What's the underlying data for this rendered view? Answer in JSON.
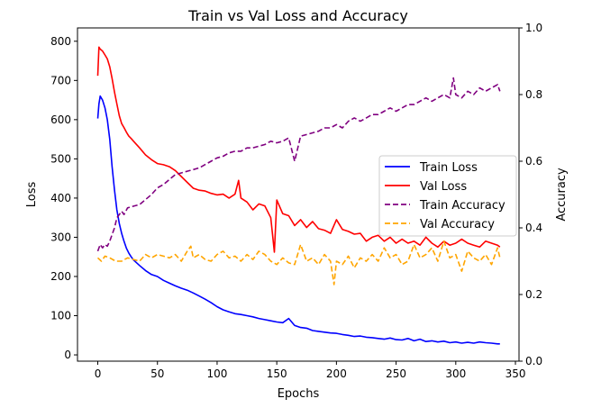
{
  "chart_data": {
    "type": "line",
    "title": "Train vs Val Loss and Accuracy",
    "xlabel": "Epochs",
    "ylabel": "Loss",
    "y2label": "Accuracy",
    "xlim": [
      -17,
      353
    ],
    "ylim": [
      -16,
      834
    ],
    "y2lim": [
      0.0,
      1.0
    ],
    "xticks": [
      0,
      50,
      100,
      150,
      200,
      250,
      300,
      350
    ],
    "yticks": [
      0,
      100,
      200,
      300,
      400,
      500,
      600,
      700,
      800
    ],
    "y2ticks": [
      0.0,
      0.2,
      0.4,
      0.6,
      0.8,
      1.0
    ],
    "grid": false,
    "legend_position": "center-right",
    "series": [
      {
        "name": "Train Loss",
        "axis": "left",
        "color": "#0000ff",
        "style": "solid",
        "x": [
          0,
          1,
          2,
          4,
          6,
          8,
          10,
          12,
          14,
          16,
          18,
          20,
          22,
          24,
          26,
          28,
          30,
          35,
          40,
          45,
          50,
          55,
          60,
          65,
          70,
          75,
          80,
          85,
          90,
          95,
          100,
          105,
          110,
          115,
          120,
          125,
          130,
          135,
          140,
          145,
          150,
          155,
          160,
          165,
          170,
          175,
          180,
          185,
          190,
          195,
          200,
          205,
          210,
          215,
          220,
          225,
          230,
          235,
          240,
          245,
          250,
          255,
          260,
          265,
          270,
          275,
          280,
          285,
          290,
          295,
          300,
          305,
          310,
          315,
          320,
          325,
          330,
          335,
          337
        ],
        "values": [
          603,
          640,
          660,
          650,
          630,
          600,
          550,
          480,
          420,
          370,
          335,
          310,
          290,
          272,
          260,
          250,
          242,
          228,
          215,
          205,
          200,
          190,
          183,
          176,
          170,
          165,
          158,
          150,
          142,
          133,
          123,
          115,
          110,
          105,
          103,
          100,
          97,
          93,
          90,
          87,
          84,
          82,
          93,
          75,
          70,
          68,
          62,
          60,
          58,
          56,
          55,
          52,
          50,
          47,
          48,
          45,
          44,
          42,
          40,
          43,
          39,
          38,
          42,
          36,
          40,
          34,
          36,
          33,
          35,
          31,
          33,
          30,
          32,
          30,
          33,
          31,
          30,
          28,
          28
        ]
      },
      {
        "name": "Val Loss",
        "axis": "left",
        "color": "#ff0000",
        "style": "solid",
        "x": [
          0,
          1,
          2,
          4,
          6,
          8,
          10,
          12,
          14,
          16,
          18,
          20,
          22,
          24,
          26,
          28,
          30,
          35,
          40,
          45,
          50,
          55,
          60,
          65,
          70,
          75,
          80,
          85,
          90,
          95,
          100,
          105,
          110,
          115,
          118,
          120,
          125,
          130,
          135,
          140,
          145,
          148,
          150,
          155,
          160,
          165,
          170,
          175,
          180,
          185,
          190,
          195,
          200,
          205,
          210,
          215,
          220,
          225,
          230,
          235,
          240,
          245,
          250,
          255,
          260,
          265,
          270,
          275,
          280,
          285,
          290,
          295,
          300,
          305,
          310,
          315,
          320,
          325,
          330,
          335,
          337
        ],
        "values": [
          712,
          785,
          780,
          775,
          765,
          755,
          735,
          705,
          670,
          640,
          610,
          590,
          580,
          568,
          558,
          552,
          545,
          528,
          510,
          498,
          488,
          485,
          480,
          470,
          455,
          440,
          425,
          420,
          418,
          412,
          408,
          410,
          400,
          410,
          445,
          400,
          390,
          370,
          385,
          380,
          350,
          262,
          395,
          360,
          355,
          330,
          345,
          325,
          340,
          322,
          318,
          310,
          345,
          320,
          315,
          308,
          310,
          290,
          300,
          305,
          290,
          300,
          285,
          295,
          285,
          290,
          280,
          300,
          285,
          275,
          290,
          280,
          285,
          295,
          285,
          280,
          275,
          290,
          285,
          280,
          275
        ]
      },
      {
        "name": "Train Accuracy",
        "axis": "right",
        "color": "#800080",
        "style": "dashed",
        "x": [
          0,
          2,
          4,
          6,
          8,
          10,
          12,
          14,
          16,
          18,
          20,
          22,
          25,
          30,
          35,
          40,
          45,
          50,
          55,
          60,
          65,
          70,
          75,
          80,
          85,
          90,
          95,
          100,
          105,
          110,
          115,
          120,
          125,
          130,
          135,
          140,
          145,
          150,
          155,
          160,
          165,
          170,
          175,
          180,
          185,
          190,
          195,
          200,
          205,
          210,
          215,
          220,
          225,
          230,
          235,
          240,
          245,
          250,
          255,
          260,
          265,
          270,
          275,
          280,
          285,
          290,
          295,
          298,
          300,
          305,
          310,
          315,
          320,
          325,
          330,
          335,
          337
        ],
        "values": [
          0.33,
          0.35,
          0.34,
          0.35,
          0.345,
          0.36,
          0.38,
          0.4,
          0.43,
          0.44,
          0.45,
          0.44,
          0.46,
          0.465,
          0.47,
          0.485,
          0.5,
          0.52,
          0.53,
          0.545,
          0.56,
          0.565,
          0.57,
          0.575,
          0.58,
          0.59,
          0.6,
          0.61,
          0.615,
          0.625,
          0.63,
          0.63,
          0.64,
          0.64,
          0.645,
          0.65,
          0.66,
          0.655,
          0.66,
          0.67,
          0.6,
          0.675,
          0.68,
          0.685,
          0.69,
          0.7,
          0.7,
          0.71,
          0.7,
          0.72,
          0.73,
          0.72,
          0.73,
          0.74,
          0.74,
          0.75,
          0.76,
          0.75,
          0.76,
          0.77,
          0.77,
          0.78,
          0.79,
          0.78,
          0.79,
          0.8,
          0.79,
          0.85,
          0.8,
          0.79,
          0.81,
          0.8,
          0.82,
          0.81,
          0.82,
          0.83,
          0.81
        ]
      },
      {
        "name": "Val Accuracy",
        "axis": "right",
        "color": "#ffa500",
        "style": "dashed",
        "x": [
          0,
          3,
          6,
          10,
          15,
          20,
          25,
          30,
          35,
          40,
          45,
          50,
          55,
          60,
          65,
          70,
          75,
          78,
          80,
          85,
          90,
          95,
          100,
          105,
          110,
          115,
          120,
          125,
          130,
          135,
          140,
          145,
          150,
          155,
          160,
          165,
          170,
          175,
          180,
          185,
          190,
          195,
          198,
          200,
          205,
          210,
          215,
          220,
          225,
          230,
          235,
          240,
          245,
          250,
          255,
          260,
          265,
          270,
          275,
          280,
          285,
          290,
          295,
          300,
          305,
          310,
          315,
          320,
          325,
          330,
          335,
          337
        ],
        "values": [
          0.31,
          0.3,
          0.315,
          0.31,
          0.3,
          0.3,
          0.31,
          0.305,
          0.3,
          0.32,
          0.31,
          0.32,
          0.315,
          0.31,
          0.32,
          0.3,
          0.33,
          0.345,
          0.31,
          0.32,
          0.305,
          0.3,
          0.32,
          0.33,
          0.31,
          0.315,
          0.3,
          0.32,
          0.305,
          0.33,
          0.32,
          0.3,
          0.29,
          0.31,
          0.295,
          0.29,
          0.35,
          0.3,
          0.31,
          0.29,
          0.32,
          0.3,
          0.23,
          0.3,
          0.29,
          0.315,
          0.28,
          0.31,
          0.3,
          0.32,
          0.3,
          0.34,
          0.31,
          0.32,
          0.29,
          0.3,
          0.35,
          0.31,
          0.32,
          0.34,
          0.3,
          0.36,
          0.31,
          0.32,
          0.27,
          0.33,
          0.31,
          0.3,
          0.32,
          0.29,
          0.34,
          0.31
        ]
      }
    ]
  }
}
